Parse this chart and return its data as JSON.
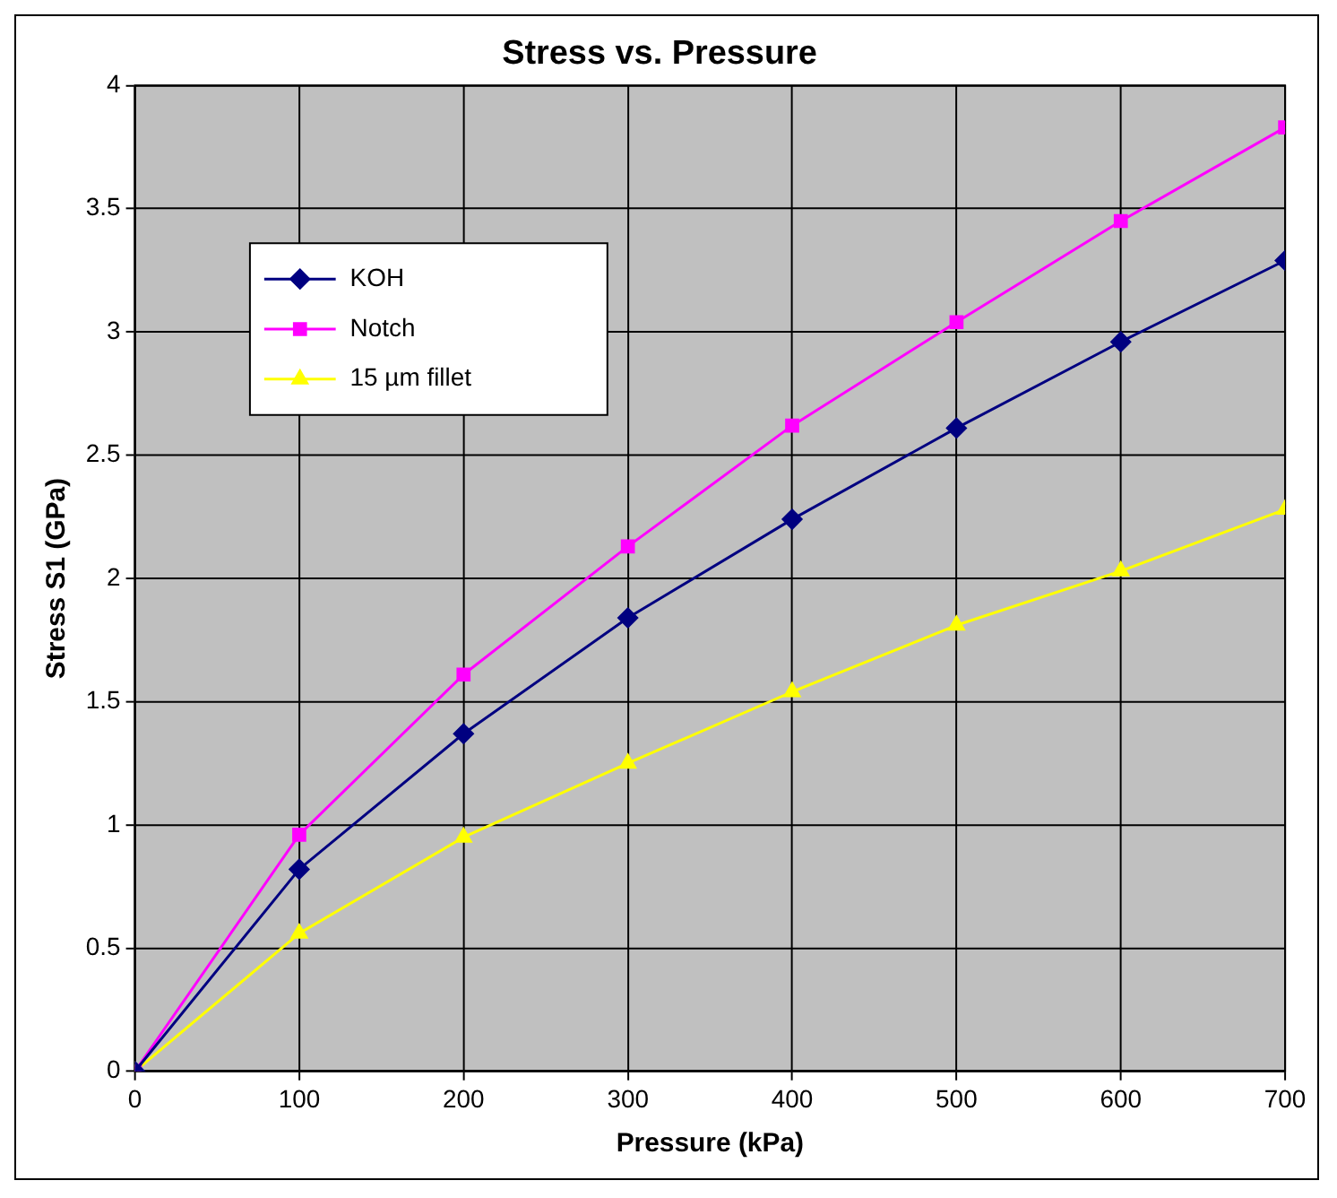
{
  "chart_data": {
    "type": "line",
    "title": "Stress vs. Pressure",
    "xlabel": "Pressure (kPa)",
    "ylabel": "Stress S1 (GPa)",
    "x": [
      0,
      100,
      200,
      300,
      400,
      500,
      600,
      700
    ],
    "xlim": [
      0,
      700
    ],
    "xticks": [
      0,
      100,
      200,
      300,
      400,
      500,
      600,
      700
    ],
    "ylim": [
      0,
      4
    ],
    "yticks": [
      0,
      0.5,
      1,
      1.5,
      2,
      2.5,
      3,
      3.5,
      4
    ],
    "grid": true,
    "legend": "top left",
    "line_style": "solid",
    "series": [
      {
        "name": "KOH",
        "color": "#000080",
        "marker": "diamond",
        "values": [
          0,
          0.82,
          1.37,
          1.84,
          2.24,
          2.61,
          2.96,
          3.29
        ]
      },
      {
        "name": "Notch",
        "color": "#ff00ff",
        "marker": "square",
        "values": [
          0,
          0.96,
          1.61,
          2.13,
          2.62,
          3.04,
          3.45,
          3.83
        ]
      },
      {
        "name": "15 µm fillet",
        "color": "#ffff00",
        "marker": "triangle",
        "values": [
          0,
          0.56,
          0.95,
          1.25,
          1.54,
          1.81,
          2.03,
          2.28
        ]
      }
    ]
  }
}
